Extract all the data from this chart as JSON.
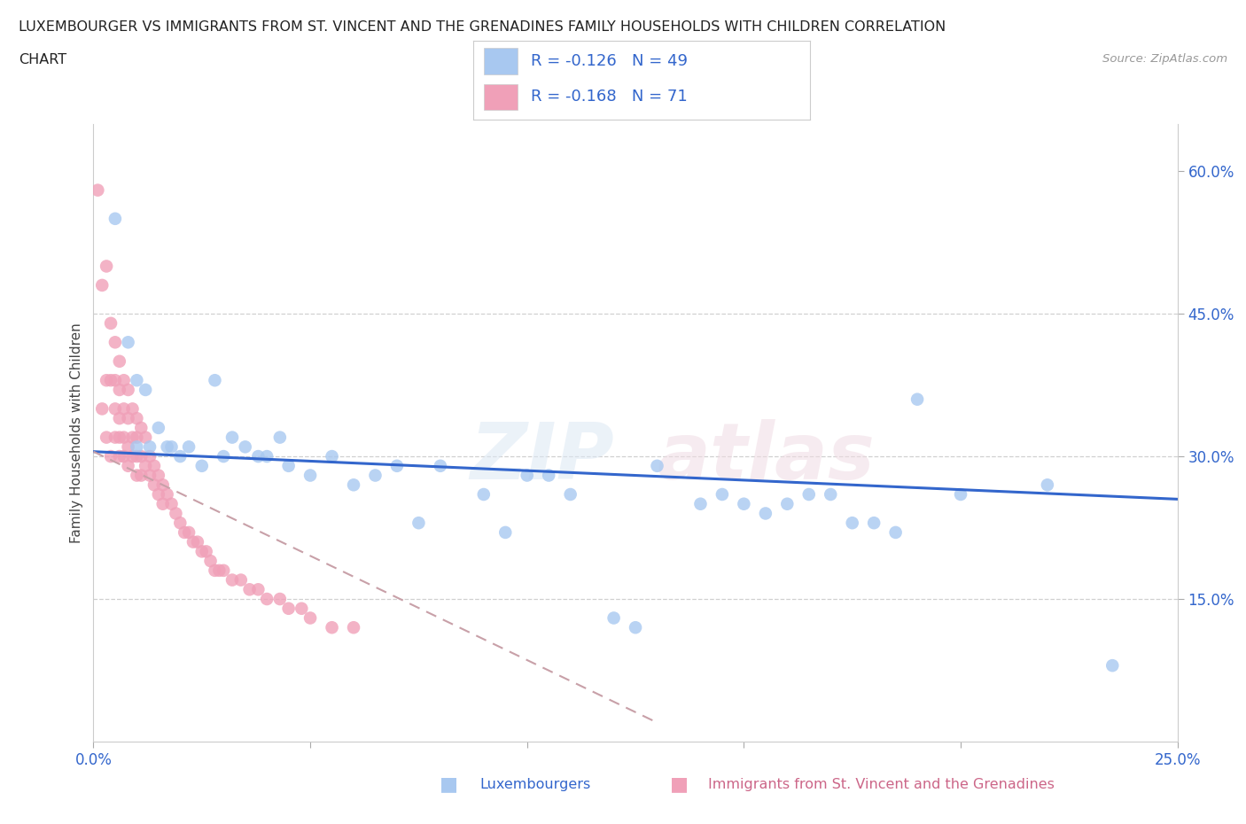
{
  "title_line1": "LUXEMBOURGER VS IMMIGRANTS FROM ST. VINCENT AND THE GRENADINES FAMILY HOUSEHOLDS WITH CHILDREN CORRELATION",
  "title_line2": "CHART",
  "source": "Source: ZipAtlas.com",
  "ylabel": "Family Households with Children",
  "xlim": [
    0.0,
    0.25
  ],
  "ylim": [
    0.0,
    0.65
  ],
  "x_ticks": [
    0.0,
    0.05,
    0.1,
    0.15,
    0.2,
    0.25
  ],
  "x_tick_labels": [
    "0.0%",
    "",
    "",
    "",
    "",
    "25.0%"
  ],
  "y_ticks_right": [
    0.15,
    0.3,
    0.45,
    0.6
  ],
  "y_tick_labels_right": [
    "15.0%",
    "30.0%",
    "45.0%",
    "60.0%"
  ],
  "hlines": [
    0.45,
    0.3,
    0.15
  ],
  "R_blue": -0.126,
  "N_blue": 49,
  "R_pink": -0.168,
  "N_pink": 71,
  "blue_color": "#a8c8f0",
  "pink_color": "#f0a0b8",
  "blue_line_color": "#3366cc",
  "pink_line_color": "#c8a0a8",
  "legend_text_color": "#3366cc",
  "blue_scatter_x": [
    0.005,
    0.008,
    0.01,
    0.01,
    0.012,
    0.013,
    0.015,
    0.017,
    0.018,
    0.02,
    0.022,
    0.025,
    0.028,
    0.03,
    0.032,
    0.035,
    0.038,
    0.04,
    0.043,
    0.045,
    0.05,
    0.055,
    0.06,
    0.065,
    0.07,
    0.075,
    0.08,
    0.09,
    0.095,
    0.1,
    0.105,
    0.11,
    0.12,
    0.125,
    0.13,
    0.14,
    0.145,
    0.15,
    0.155,
    0.16,
    0.165,
    0.17,
    0.175,
    0.18,
    0.185,
    0.19,
    0.2,
    0.22,
    0.235
  ],
  "blue_scatter_y": [
    0.55,
    0.42,
    0.38,
    0.31,
    0.37,
    0.31,
    0.33,
    0.31,
    0.31,
    0.3,
    0.31,
    0.29,
    0.38,
    0.3,
    0.32,
    0.31,
    0.3,
    0.3,
    0.32,
    0.29,
    0.28,
    0.3,
    0.27,
    0.28,
    0.29,
    0.23,
    0.29,
    0.26,
    0.22,
    0.28,
    0.28,
    0.26,
    0.13,
    0.12,
    0.29,
    0.25,
    0.26,
    0.25,
    0.24,
    0.25,
    0.26,
    0.26,
    0.23,
    0.23,
    0.22,
    0.36,
    0.26,
    0.27,
    0.08
  ],
  "pink_scatter_x": [
    0.001,
    0.002,
    0.002,
    0.003,
    0.003,
    0.003,
    0.004,
    0.004,
    0.004,
    0.005,
    0.005,
    0.005,
    0.005,
    0.006,
    0.006,
    0.006,
    0.006,
    0.006,
    0.007,
    0.007,
    0.007,
    0.007,
    0.008,
    0.008,
    0.008,
    0.008,
    0.009,
    0.009,
    0.009,
    0.01,
    0.01,
    0.01,
    0.01,
    0.011,
    0.011,
    0.011,
    0.012,
    0.012,
    0.013,
    0.013,
    0.014,
    0.014,
    0.015,
    0.015,
    0.016,
    0.016,
    0.017,
    0.018,
    0.019,
    0.02,
    0.021,
    0.022,
    0.023,
    0.024,
    0.025,
    0.026,
    0.027,
    0.028,
    0.029,
    0.03,
    0.032,
    0.034,
    0.036,
    0.038,
    0.04,
    0.043,
    0.045,
    0.048,
    0.05,
    0.055,
    0.06
  ],
  "pink_scatter_y": [
    0.58,
    0.48,
    0.35,
    0.5,
    0.38,
    0.32,
    0.44,
    0.38,
    0.3,
    0.42,
    0.38,
    0.35,
    0.32,
    0.4,
    0.37,
    0.34,
    0.32,
    0.3,
    0.38,
    0.35,
    0.32,
    0.3,
    0.37,
    0.34,
    0.31,
    0.29,
    0.35,
    0.32,
    0.3,
    0.34,
    0.32,
    0.3,
    0.28,
    0.33,
    0.3,
    0.28,
    0.32,
    0.29,
    0.3,
    0.28,
    0.29,
    0.27,
    0.28,
    0.26,
    0.27,
    0.25,
    0.26,
    0.25,
    0.24,
    0.23,
    0.22,
    0.22,
    0.21,
    0.21,
    0.2,
    0.2,
    0.19,
    0.18,
    0.18,
    0.18,
    0.17,
    0.17,
    0.16,
    0.16,
    0.15,
    0.15,
    0.14,
    0.14,
    0.13,
    0.12,
    0.12
  ],
  "blue_trendline_x": [
    0.0,
    0.25
  ],
  "blue_trendline_y": [
    0.305,
    0.255
  ],
  "pink_trendline_x": [
    0.0,
    0.13
  ],
  "pink_trendline_y": [
    0.305,
    0.02
  ],
  "watermark_part1": "ZIP",
  "watermark_part2": "atlas",
  "background_color": "#ffffff",
  "bottom_legend": [
    {
      "label": "Luxembourgers",
      "color": "#a8c8f0",
      "text_color": "#3366cc"
    },
    {
      "label": "Immigrants from St. Vincent and the Grenadines",
      "color": "#f0a0b8",
      "text_color": "#cc6688"
    }
  ]
}
